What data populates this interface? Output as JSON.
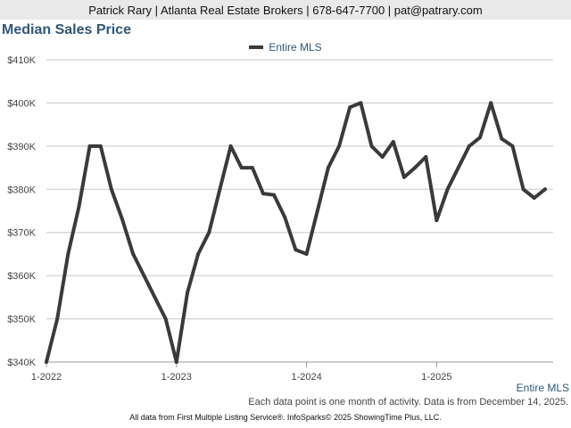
{
  "header": {
    "contact_line": "Patrick Rary | Atlanta Real Estate Brokers | 678-647-7700 | pat@patrary.com"
  },
  "footer": {
    "series_label": "Entire MLS",
    "data_note": "Each data point is one month of activity. Data is from December 14, 2025.",
    "source_note": "All data from First Multiple Listing Service®. InfoSparks© 2025 ShowingTime Plus, LLC."
  },
  "colors": {
    "line": "#3a3a3a",
    "title": "#2f5778",
    "grid": "#c8c8c8"
  },
  "chart_data": {
    "type": "line",
    "title": "Median Sales Price",
    "xlabel": "",
    "ylabel": "",
    "x_tick_labels": [
      "1-2022",
      "1-2023",
      "1-2024",
      "1-2025"
    ],
    "y_tick_labels": [
      "$340K",
      "$350K",
      "$360K",
      "$370K",
      "$380K",
      "$390K",
      "$400K",
      "$410K"
    ],
    "ylim": [
      340000,
      410000
    ],
    "y_ticks": [
      340000,
      350000,
      360000,
      370000,
      380000,
      390000,
      400000,
      410000
    ],
    "grid": true,
    "legend_position": "top-center",
    "x": [
      "2022-01",
      "2022-02",
      "2022-03",
      "2022-04",
      "2022-05",
      "2022-06",
      "2022-07",
      "2022-08",
      "2022-09",
      "2022-10",
      "2022-11",
      "2022-12",
      "2023-01",
      "2023-02",
      "2023-03",
      "2023-04",
      "2023-05",
      "2023-06",
      "2023-07",
      "2023-08",
      "2023-09",
      "2023-10",
      "2023-11",
      "2023-12",
      "2024-01",
      "2024-02",
      "2024-03",
      "2024-04",
      "2024-05",
      "2024-06",
      "2024-07",
      "2024-08",
      "2024-09",
      "2024-10",
      "2024-11",
      "2024-12",
      "2025-01",
      "2025-02",
      "2025-03",
      "2025-04",
      "2025-05",
      "2025-06",
      "2025-07",
      "2025-08",
      "2025-09",
      "2025-10",
      "2025-11"
    ],
    "series": [
      {
        "name": "Entire MLS",
        "color": "#3a3a3a",
        "values": [
          340000,
          350000,
          365000,
          376000,
          390000,
          390000,
          380000,
          373000,
          365000,
          360000,
          355000,
          350000,
          340000,
          356000,
          365000,
          370000,
          380000,
          390000,
          385000,
          385000,
          379000,
          378700,
          373500,
          366000,
          365000,
          375000,
          385000,
          390000,
          399000,
          400000,
          390000,
          387500,
          391000,
          382800,
          385000,
          387500,
          372800,
          380000,
          385000,
          390000,
          392000,
          400000,
          391700,
          390000,
          380000,
          378000,
          380000
        ]
      }
    ]
  }
}
